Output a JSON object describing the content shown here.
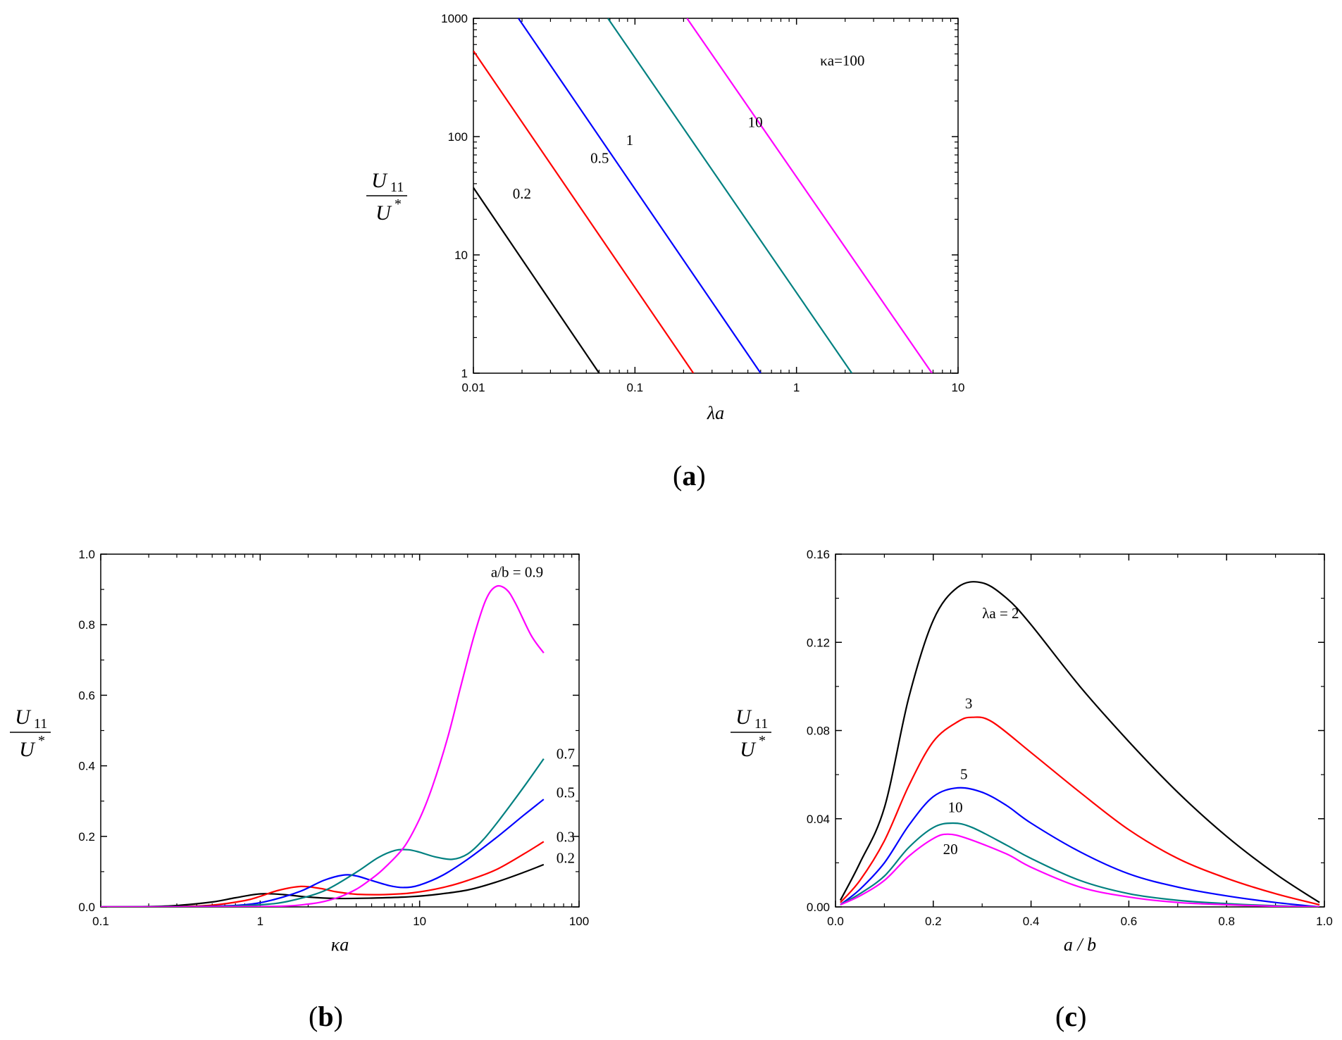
{
  "chart_data": [
    {
      "id": "a",
      "panel_label": "a",
      "type": "line",
      "x_scale": "log",
      "y_scale": "log",
      "xlabel": "λa",
      "ylabel_num": "U",
      "ylabel_num_sub": "11",
      "ylabel_den": "U",
      "ylabel_den_sup": "*",
      "xlim": [
        0.01,
        10
      ],
      "ylim": [
        1,
        1000
      ],
      "xticks": [
        0.01,
        0.1,
        1,
        10
      ],
      "xtick_labels": [
        "0.01",
        "0.1",
        "1",
        "10"
      ],
      "yticks": [
        1,
        10,
        100,
        1000
      ],
      "ytick_labels": [
        "1",
        "10",
        "100",
        "1000"
      ],
      "series": [
        {
          "name": "0.2",
          "color": "#000000",
          "x": [
            0.01,
            0.06
          ],
          "y": [
            37,
            1
          ]
        },
        {
          "name": "0.5",
          "color": "#ff0000",
          "x": [
            0.01,
            0.23
          ],
          "y": [
            530,
            1
          ]
        },
        {
          "name": "1",
          "color": "#0000ff",
          "x": [
            0.019,
            0.6
          ],
          "y": [
            1000,
            1
          ]
        },
        {
          "name": "10",
          "color": "#008080",
          "x": [
            0.068,
            2.2
          ],
          "y": [
            1000,
            1
          ]
        },
        {
          "name": "κa=100",
          "color": "#ff00ff",
          "x": [
            0.21,
            6.9
          ],
          "y": [
            1000,
            1
          ]
        }
      ],
      "annotations": [
        {
          "text": "0.2",
          "x": 0.0175,
          "y": 30
        },
        {
          "text": "0.5",
          "x": 0.053,
          "y": 60
        },
        {
          "text": "1",
          "x": 0.088,
          "y": 85
        },
        {
          "text": "10",
          "x": 0.5,
          "y": 120
        },
        {
          "text": "κa=100",
          "x": 1.4,
          "y": 400
        }
      ]
    },
    {
      "id": "b",
      "panel_label": "b",
      "type": "line",
      "x_scale": "log",
      "y_scale": "linear",
      "xlabel": "κa",
      "ylabel_num": "U",
      "ylabel_num_sub": "11",
      "ylabel_den": "U",
      "ylabel_den_sup": "*",
      "xlim": [
        0.1,
        100
      ],
      "ylim": [
        0,
        1.0
      ],
      "xticks": [
        0.1,
        1,
        10,
        100
      ],
      "xtick_labels": [
        "0.1",
        "1",
        "10",
        "100"
      ],
      "yticks": [
        0,
        0.2,
        0.4,
        0.6,
        0.8,
        1.0
      ],
      "ytick_labels": [
        "0.0",
        "0.2",
        "0.4",
        "0.6",
        "0.8",
        "1.0"
      ],
      "series": [
        {
          "name": "0.2",
          "color": "#000000",
          "x": [
            0.1,
            0.2,
            0.3,
            0.5,
            0.7,
            1.0,
            1.4,
            2,
            3,
            5,
            8,
            12,
            20,
            30,
            45,
            60
          ],
          "y": [
            0,
            0.001,
            0.004,
            0.014,
            0.026,
            0.037,
            0.035,
            0.028,
            0.024,
            0.025,
            0.028,
            0.034,
            0.048,
            0.07,
            0.098,
            0.12
          ]
        },
        {
          "name": "0.3",
          "color": "#ff0000",
          "x": [
            0.1,
            0.3,
            0.5,
            0.8,
            1.0,
            1.3,
            1.8,
            2.4,
            3,
            4,
            6,
            9,
            14,
            20,
            30,
            45,
            60
          ],
          "y": [
            0,
            0.001,
            0.005,
            0.018,
            0.03,
            0.047,
            0.058,
            0.052,
            0.043,
            0.036,
            0.035,
            0.04,
            0.055,
            0.075,
            0.105,
            0.15,
            0.185
          ]
        },
        {
          "name": "0.5",
          "color": "#0000ff",
          "x": [
            0.1,
            0.4,
            0.8,
            1.2,
            1.8,
            2.5,
            3.3,
            4,
            5,
            6.5,
            8,
            10,
            14,
            20,
            30,
            45,
            60
          ],
          "y": [
            0,
            0.001,
            0.006,
            0.02,
            0.045,
            0.075,
            0.09,
            0.088,
            0.075,
            0.06,
            0.055,
            0.062,
            0.09,
            0.135,
            0.195,
            0.26,
            0.305
          ]
        },
        {
          "name": "0.7",
          "color": "#008080",
          "x": [
            0.1,
            0.5,
            1.0,
            1.5,
            2.5,
            4,
            5.5,
            7,
            8.5,
            10,
            12.5,
            16,
            20,
            25,
            32,
            45,
            60
          ],
          "y": [
            0,
            0.001,
            0.006,
            0.016,
            0.045,
            0.098,
            0.14,
            0.16,
            0.162,
            0.155,
            0.142,
            0.135,
            0.15,
            0.19,
            0.25,
            0.34,
            0.42
          ]
        },
        {
          "name": "a/b = 0.9",
          "color": "#ff00ff",
          "x": [
            0.1,
            1.0,
            2,
            3,
            4,
            5,
            6,
            8,
            10,
            12,
            15,
            18,
            22,
            26,
            30,
            35,
            40,
            50,
            60
          ],
          "y": [
            0,
            0.001,
            0.008,
            0.025,
            0.05,
            0.08,
            0.11,
            0.17,
            0.25,
            0.34,
            0.48,
            0.62,
            0.77,
            0.87,
            0.908,
            0.9,
            0.86,
            0.77,
            0.72
          ]
        }
      ],
      "annotations": [
        {
          "text": "a/b = 0.9",
          "x": 28,
          "y": 0.935
        },
        {
          "text": "0.7",
          "x": 72,
          "y": 0.42
        },
        {
          "text": "0.5",
          "x": 72,
          "y": 0.31
        },
        {
          "text": "0.3",
          "x": 72,
          "y": 0.185
        },
        {
          "text": "0.2",
          "x": 72,
          "y": 0.125
        }
      ]
    },
    {
      "id": "c",
      "panel_label": "c",
      "type": "line",
      "x_scale": "linear",
      "y_scale": "linear",
      "xlabel": "a / b",
      "ylabel_num": "U",
      "ylabel_num_sub": "11",
      "ylabel_den": "U",
      "ylabel_den_sup": "*",
      "xlim": [
        0,
        1.0
      ],
      "ylim": [
        0,
        0.16
      ],
      "xticks": [
        0,
        0.2,
        0.4,
        0.6,
        0.8,
        1.0
      ],
      "xtick_labels": [
        "0.0",
        "0.2",
        "0.4",
        "0.6",
        "0.8",
        "1.0"
      ],
      "yticks": [
        0,
        0.04,
        0.08,
        0.12,
        0.16
      ],
      "ytick_labels": [
        "0.00",
        "0.04",
        "0.08",
        "0.12",
        "0.16"
      ],
      "series": [
        {
          "name": "λa = 2",
          "color": "#000000",
          "x": [
            0.01,
            0.05,
            0.1,
            0.15,
            0.2,
            0.25,
            0.3,
            0.35,
            0.4,
            0.5,
            0.6,
            0.7,
            0.8,
            0.9,
            0.99
          ],
          "y": [
            0.003,
            0.02,
            0.045,
            0.095,
            0.13,
            0.145,
            0.147,
            0.14,
            0.128,
            0.1,
            0.075,
            0.052,
            0.032,
            0.015,
            0.002
          ]
        },
        {
          "name": "3",
          "color": "#ff0000",
          "x": [
            0.01,
            0.05,
            0.1,
            0.15,
            0.2,
            0.25,
            0.28,
            0.32,
            0.4,
            0.5,
            0.6,
            0.7,
            0.8,
            0.9,
            0.99
          ],
          "y": [
            0.002,
            0.012,
            0.03,
            0.055,
            0.075,
            0.084,
            0.086,
            0.084,
            0.07,
            0.052,
            0.035,
            0.022,
            0.013,
            0.006,
            0.001
          ]
        },
        {
          "name": "5",
          "color": "#0000ff",
          "x": [
            0.01,
            0.05,
            0.1,
            0.15,
            0.2,
            0.25,
            0.3,
            0.35,
            0.4,
            0.5,
            0.6,
            0.7,
            0.8,
            0.9,
            0.99
          ],
          "y": [
            0.001,
            0.008,
            0.02,
            0.037,
            0.05,
            0.054,
            0.052,
            0.046,
            0.038,
            0.025,
            0.015,
            0.009,
            0.005,
            0.002,
            0.0
          ]
        },
        {
          "name": "10",
          "color": "#008080",
          "x": [
            0.01,
            0.05,
            0.1,
            0.15,
            0.2,
            0.24,
            0.28,
            0.35,
            0.4,
            0.5,
            0.6,
            0.7,
            0.8,
            0.9,
            0.99
          ],
          "y": [
            0.001,
            0.006,
            0.014,
            0.027,
            0.036,
            0.038,
            0.036,
            0.028,
            0.022,
            0.012,
            0.006,
            0.003,
            0.0015,
            0.0005,
            0.0
          ]
        },
        {
          "name": "20",
          "color": "#ff00ff",
          "x": [
            0.01,
            0.05,
            0.1,
            0.15,
            0.2,
            0.23,
            0.27,
            0.35,
            0.4,
            0.5,
            0.6,
            0.7,
            0.8,
            0.9,
            0.99
          ],
          "y": [
            0.001,
            0.005,
            0.012,
            0.023,
            0.031,
            0.033,
            0.031,
            0.024,
            0.018,
            0.009,
            0.0045,
            0.002,
            0.001,
            0.0003,
            0.0
          ]
        }
      ],
      "annotations": [
        {
          "text": "λa = 2",
          "x": 0.3,
          "y": 0.131
        },
        {
          "text": "3",
          "x": 0.265,
          "y": 0.09
        },
        {
          "text": "5",
          "x": 0.255,
          "y": 0.058
        },
        {
          "text": "10",
          "x": 0.23,
          "y": 0.043
        },
        {
          "text": "20",
          "x": 0.22,
          "y": 0.024
        }
      ]
    }
  ]
}
